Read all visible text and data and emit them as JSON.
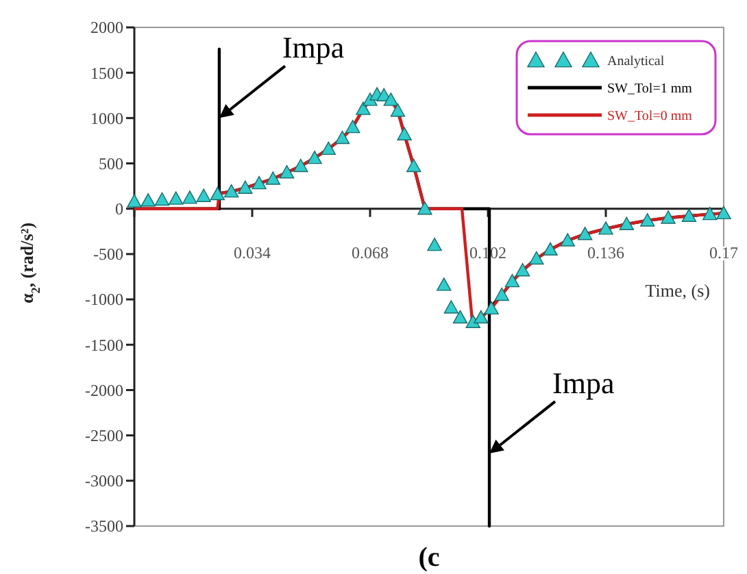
{
  "chart_data": {
    "type": "line",
    "xlabel": "Time, (s)",
    "ylabel": "α$_{2}$, (rad/s²)",
    "xlim": [
      0,
      0.17
    ],
    "ylim": [
      -3500,
      2000
    ],
    "xticks": [
      {
        "value": 0,
        "label": null
      },
      0.034,
      0.068,
      0.102,
      0.136,
      0.17
    ],
    "yticks": [
      -3500,
      -3000,
      -2500,
      -2000,
      -1500,
      -1000,
      -500,
      0,
      500,
      1000,
      1500,
      2000
    ],
    "grid": false,
    "legend": "top right",
    "annotations": [
      {
        "text": "Impa",
        "x": 0.0245,
        "y": 1000
      },
      {
        "text": "Impa",
        "x": 0.1024,
        "y": -2700
      },
      "(c"
    ],
    "series": [
      {
        "name": "SW_Tol=1 mm",
        "color": "#000000",
        "marker": "none",
        "x": [
          0,
          0.01,
          0.024,
          0.0245,
          0.0245,
          0.0245,
          0.028,
          0.032,
          0.036,
          0.04,
          0.044,
          0.048,
          0.052,
          0.056,
          0.06,
          0.063,
          0.066,
          0.068,
          0.07,
          0.072,
          0.074,
          0.076,
          0.0779,
          0.0806,
          0.0838,
          0.09,
          0.1024,
          0.1024,
          0.1024,
          0.106,
          0.109,
          0.112,
          0.116,
          0.12,
          0.125,
          0.13,
          0.136,
          0.142,
          0.148,
          0.154,
          0.16,
          0.166,
          0.17
        ],
        "values": [
          0,
          0,
          0,
          0,
          1760,
          170,
          190,
          230,
          280,
          330,
          400,
          470,
          560,
          660,
          780,
          900,
          1100,
          1200,
          1260,
          1250,
          1200,
          1080,
          820,
          470,
          0,
          0,
          0,
          -3500,
          -1100,
          -950,
          -800,
          -680,
          -550,
          -450,
          -350,
          -280,
          -220,
          -170,
          -130,
          -100,
          -80,
          -60,
          -50
        ]
      },
      {
        "name": "SW_Tol=0 mm",
        "color": "#cc2020",
        "marker": "none",
        "x": [
          0,
          0.01,
          0.024,
          0.0245,
          0.028,
          0.032,
          0.036,
          0.04,
          0.044,
          0.048,
          0.052,
          0.056,
          0.06,
          0.063,
          0.066,
          0.068,
          0.07,
          0.072,
          0.074,
          0.076,
          0.0779,
          0.0806,
          0.0838,
          0.0945,
          0.0975,
          0.1,
          0.103,
          0.106,
          0.109,
          0.112,
          0.116,
          0.12,
          0.125,
          0.13,
          0.136,
          0.142,
          0.148,
          0.154,
          0.16,
          0.166,
          0.17
        ],
        "values": [
          0,
          0,
          0,
          170,
          190,
          230,
          280,
          330,
          400,
          470,
          560,
          660,
          780,
          900,
          1100,
          1200,
          1260,
          1250,
          1200,
          1080,
          820,
          470,
          0,
          0,
          -1250,
          -1200,
          -1100,
          -950,
          -800,
          -680,
          -550,
          -450,
          -350,
          -280,
          -220,
          -170,
          -130,
          -100,
          -80,
          -60,
          -50
        ]
      },
      {
        "name": "Analytical",
        "color": "#33cccc",
        "type": "scatter",
        "marker": "triangle",
        "x": [
          0,
          0.004,
          0.008,
          0.012,
          0.016,
          0.02,
          0.024,
          0.028,
          0.032,
          0.036,
          0.04,
          0.044,
          0.048,
          0.052,
          0.056,
          0.06,
          0.063,
          0.066,
          0.068,
          0.07,
          0.072,
          0.074,
          0.076,
          0.0779,
          0.0806,
          0.0838,
          0.0866,
          0.0893,
          0.0914,
          0.094,
          0.0977,
          0.1,
          0.103,
          0.106,
          0.109,
          0.112,
          0.116,
          0.12,
          0.125,
          0.13,
          0.136,
          0.142,
          0.148,
          0.154,
          0.16,
          0.166,
          0.17
        ],
        "values": [
          80,
          90,
          100,
          110,
          120,
          140,
          160,
          190,
          230,
          280,
          330,
          400,
          470,
          560,
          660,
          780,
          900,
          1100,
          1200,
          1260,
          1250,
          1200,
          1080,
          820,
          470,
          0,
          -400,
          -840,
          -1090,
          -1200,
          -1250,
          -1200,
          -1100,
          -950,
          -800,
          -680,
          -550,
          -450,
          -350,
          -280,
          -220,
          -170,
          -130,
          -100,
          -80,
          -60,
          -50
        ]
      }
    ]
  }
}
